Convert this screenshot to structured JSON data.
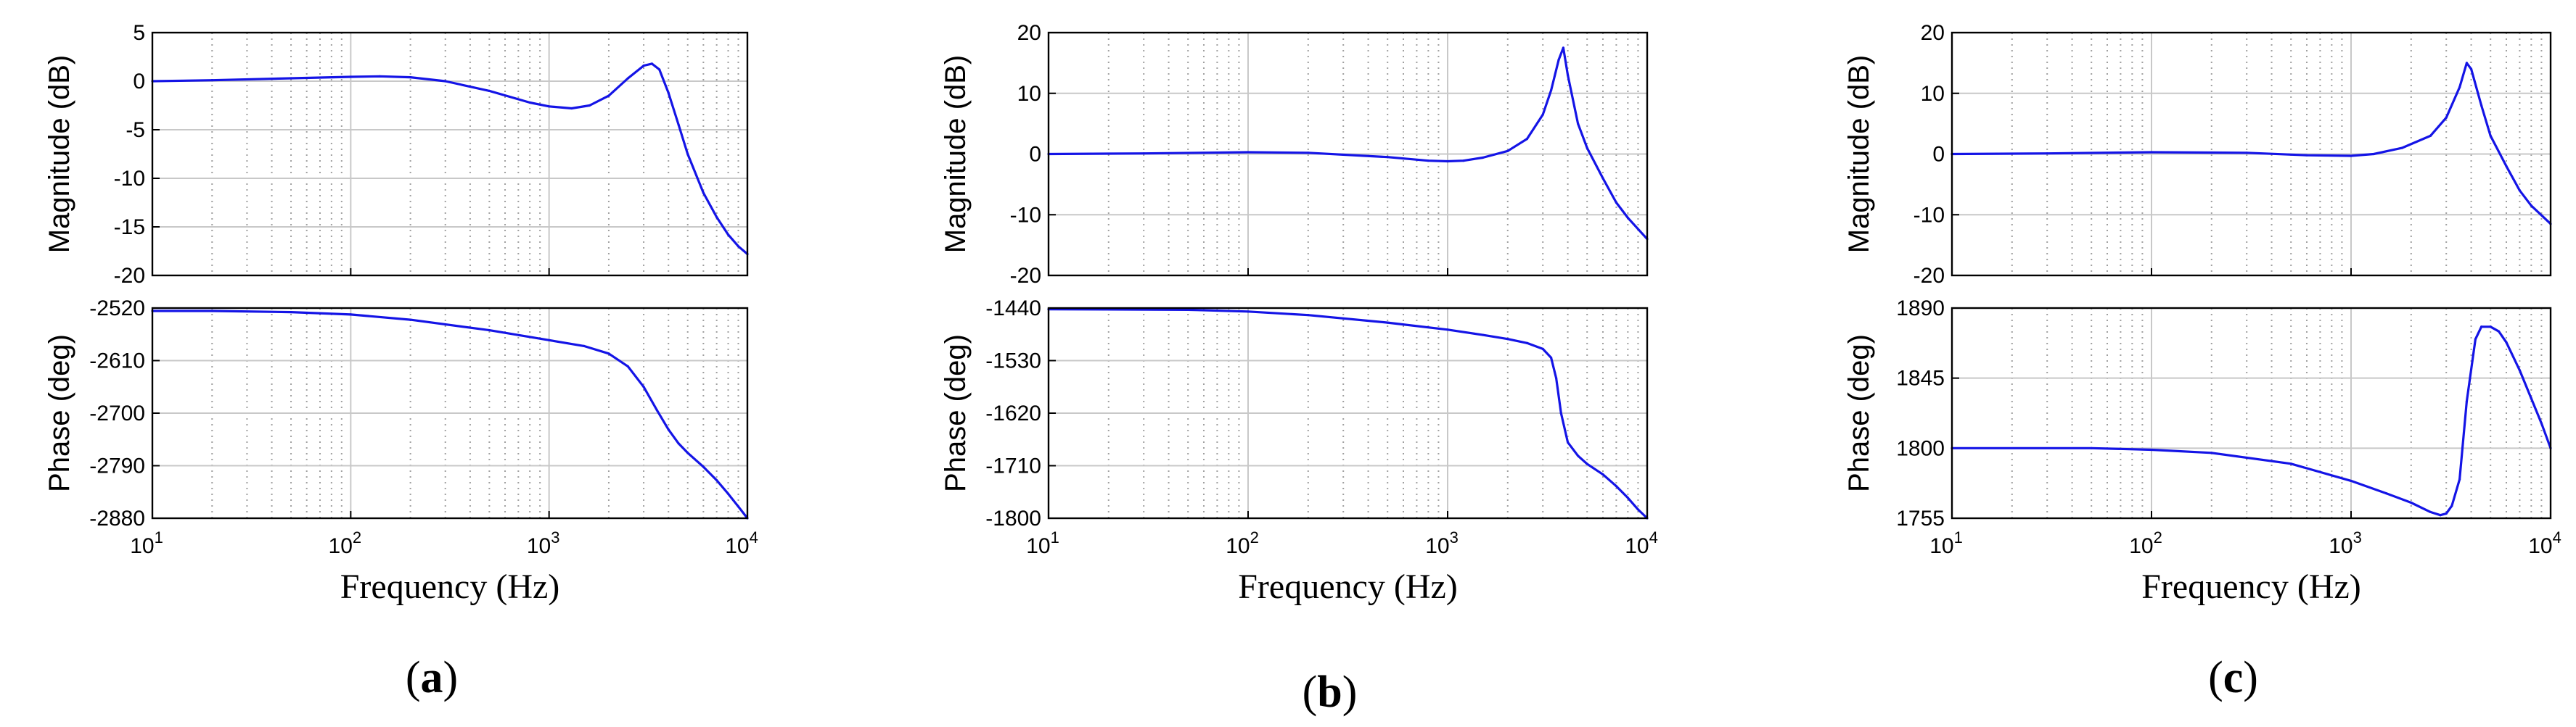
{
  "figure": {
    "colors": {
      "trace": "#1414e6",
      "axes": "#000000",
      "grid_major": "#c8c8c8",
      "grid_minor": "#a0a0a0"
    }
  },
  "chart_data": [
    {
      "type": "line",
      "panel": "a",
      "caption": {
        "open": "(",
        "letter": "a",
        "close": ")"
      },
      "xlabel": "Frequency (Hz)",
      "xscale": "log",
      "xlim": [
        10,
        10000
      ],
      "x_ticks": [
        {
          "value": 10,
          "base": "10",
          "exp": "1"
        },
        {
          "value": 100,
          "base": "10",
          "exp": "2"
        },
        {
          "value": 1000,
          "base": "10",
          "exp": "3"
        },
        {
          "value": 10000,
          "base": "10",
          "exp": "4"
        }
      ],
      "magnitude": {
        "ylabel": "Magnitude (dB)",
        "ylim": [
          -20,
          5
        ],
        "yticks": [
          "5",
          "0",
          "-5",
          "-10",
          "-15",
          "-20"
        ],
        "series": [
          {
            "name": "magnitude",
            "x": [
              10,
              20,
              50,
              100,
              140,
              200,
              300,
              500,
              800,
              1000,
              1300,
              1600,
              2000,
              2500,
              3000,
              3300,
              3600,
              4000,
              4500,
              5000,
              6000,
              7000,
              8000,
              9000,
              10000
            ],
            "y": [
              0,
              0.1,
              0.3,
              0.45,
              0.5,
              0.4,
              0,
              -1,
              -2.2,
              -2.6,
              -2.8,
              -2.5,
              -1.5,
              0.3,
              1.6,
              1.8,
              1.2,
              -1.2,
              -4.5,
              -7.5,
              -11.5,
              -14,
              -15.8,
              -17,
              -17.8
            ]
          }
        ]
      },
      "phase": {
        "ylabel": "Phase (deg)",
        "ylim": [
          -2880,
          -2520
        ],
        "yticks": [
          "-2520",
          "-2610",
          "-2700",
          "-2790",
          "-2880"
        ],
        "series": [
          {
            "name": "phase",
            "x": [
              10,
              20,
              50,
              100,
              200,
              500,
              1000,
              1500,
              2000,
              2500,
              3000,
              3500,
              4000,
              4500,
              5000,
              6000,
              7000,
              8000,
              9000,
              10000
            ],
            "y": [
              -2525,
              -2525,
              -2527,
              -2531,
              -2540,
              -2558,
              -2575,
              -2585,
              -2598,
              -2620,
              -2655,
              -2695,
              -2728,
              -2752,
              -2768,
              -2792,
              -2815,
              -2838,
              -2860,
              -2880
            ]
          }
        ]
      }
    },
    {
      "type": "line",
      "panel": "b",
      "caption": {
        "open": "(",
        "letter": "b",
        "close": ")"
      },
      "xlabel": "Frequency (Hz)",
      "xscale": "log",
      "xlim": [
        10,
        10000
      ],
      "x_ticks": [
        {
          "value": 10,
          "base": "10",
          "exp": "1"
        },
        {
          "value": 100,
          "base": "10",
          "exp": "2"
        },
        {
          "value": 1000,
          "base": "10",
          "exp": "3"
        },
        {
          "value": 10000,
          "base": "10",
          "exp": "4"
        }
      ],
      "magnitude": {
        "ylabel": "Magnitude (dB)",
        "ylim": [
          -20,
          20
        ],
        "yticks": [
          "20",
          "10",
          "0",
          "-10",
          "-20"
        ],
        "series": [
          {
            "name": "magnitude",
            "x": [
              10,
              30,
              100,
              200,
              500,
              800,
              1000,
              1200,
              1500,
              2000,
              2500,
              3000,
              3300,
              3600,
              3800,
              4000,
              4500,
              5000,
              6000,
              7000,
              8000,
              10000
            ],
            "y": [
              0,
              0.1,
              0.3,
              0.2,
              -0.5,
              -1.1,
              -1.2,
              -1.1,
              -0.6,
              0.5,
              2.5,
              6.5,
              10.5,
              15.5,
              17.5,
              13,
              5,
              1,
              -4,
              -8,
              -10.5,
              -14
            ]
          }
        ]
      },
      "phase": {
        "ylabel": "Phase (deg)",
        "ylim": [
          -1800,
          -1440
        ],
        "yticks": [
          "-1440",
          "-1530",
          "-1620",
          "-1710",
          "-1800"
        ],
        "series": [
          {
            "name": "phase",
            "x": [
              10,
              50,
              100,
              200,
              500,
              1000,
              1500,
              2000,
              2500,
              3000,
              3300,
              3500,
              3700,
              4000,
              4500,
              5000,
              6000,
              7000,
              8000,
              9000,
              10000
            ],
            "y": [
              -1442,
              -1443,
              -1446,
              -1452,
              -1465,
              -1477,
              -1486,
              -1493,
              -1500,
              -1510,
              -1525,
              -1560,
              -1620,
              -1670,
              -1693,
              -1707,
              -1725,
              -1745,
              -1765,
              -1785,
              -1800
            ]
          }
        ]
      }
    },
    {
      "type": "line",
      "panel": "c",
      "caption": {
        "open": "(",
        "letter": "c",
        "close": ")"
      },
      "xlabel": "Frequency (Hz)",
      "xscale": "log",
      "xlim": [
        10,
        10000
      ],
      "x_ticks": [
        {
          "value": 10,
          "base": "10",
          "exp": "1"
        },
        {
          "value": 100,
          "base": "10",
          "exp": "2"
        },
        {
          "value": 1000,
          "base": "10",
          "exp": "3"
        },
        {
          "value": 10000,
          "base": "10",
          "exp": "4"
        }
      ],
      "magnitude": {
        "ylabel": "Magnitude (dB)",
        "ylim": [
          -20,
          20
        ],
        "yticks": [
          "20",
          "10",
          "0",
          "-10",
          "-20"
        ],
        "series": [
          {
            "name": "magnitude",
            "x": [
              10,
              30,
              100,
              300,
              600,
              1000,
              1300,
              1800,
              2500,
              3000,
              3500,
              3800,
              4000,
              4500,
              5000,
              6000,
              7000,
              8000,
              10000
            ],
            "y": [
              0,
              0.1,
              0.3,
              0.2,
              -0.2,
              -0.3,
              0,
              1,
              3,
              6,
              11,
              15,
              14,
              8,
              3,
              -2,
              -6,
              -8.5,
              -11.5
            ]
          }
        ]
      },
      "phase": {
        "ylabel": "Phase (deg)",
        "ylim": [
          1755,
          1890
        ],
        "yticks": [
          "1890",
          "1845",
          "1800",
          "1755"
        ],
        "series": [
          {
            "name": "phase",
            "x": [
              10,
              50,
              100,
              200,
              500,
              1000,
              1500,
              2000,
              2500,
              2800,
              3000,
              3200,
              3500,
              3800,
              4200,
              4500,
              5000,
              5500,
              6000,
              7000,
              8000,
              9000,
              10000
            ],
            "y": [
              1800,
              1800,
              1799,
              1797,
              1790,
              1779,
              1771,
              1765,
              1759,
              1757,
              1758,
              1763,
              1780,
              1830,
              1870,
              1878,
              1878,
              1875,
              1868,
              1850,
              1832,
              1816,
              1800
            ]
          }
        ]
      }
    }
  ]
}
